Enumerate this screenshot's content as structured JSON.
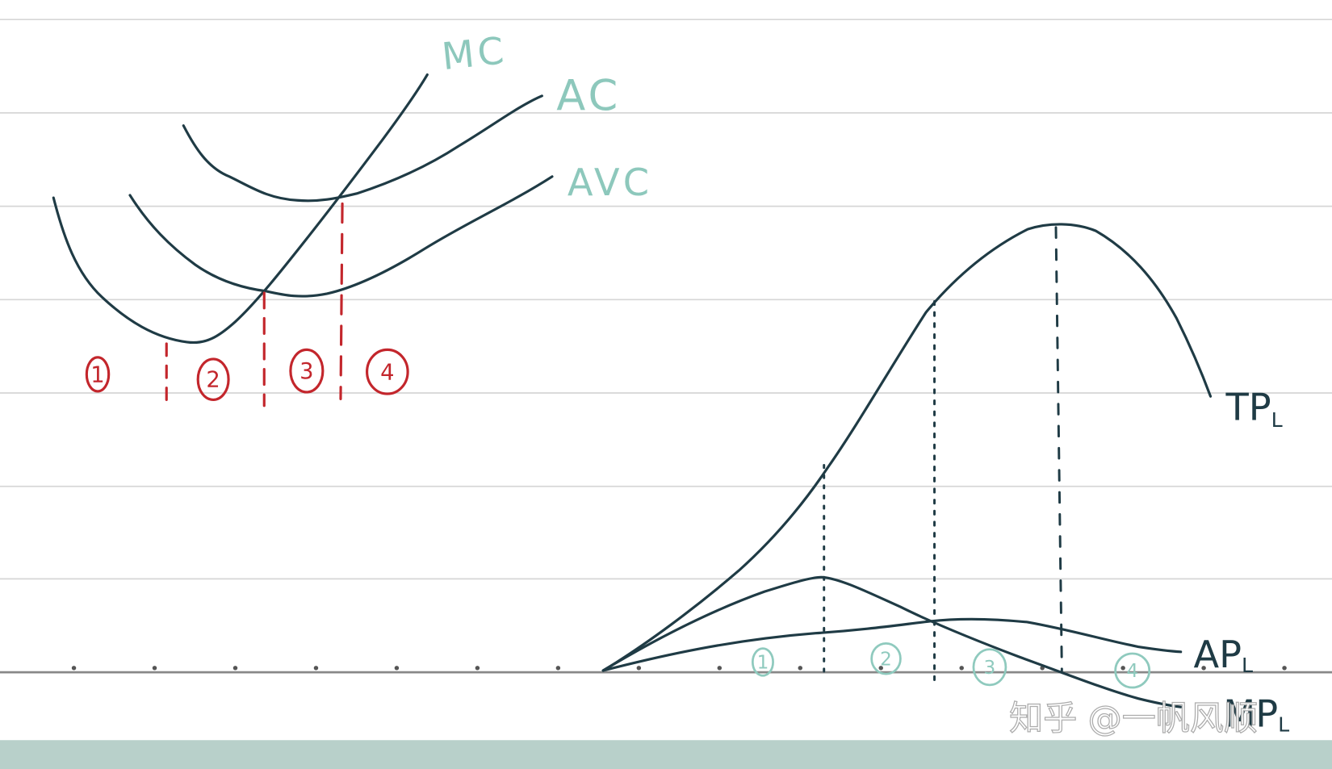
{
  "cost_diagram": {
    "curve_labels": {
      "mc": "MC",
      "ac": "AC",
      "avc": "AVC"
    },
    "region_labels": [
      "1",
      "2",
      "3",
      "4"
    ]
  },
  "production_diagram": {
    "curve_labels": {
      "tp": {
        "main": "TP",
        "sub": "L"
      },
      "ap": {
        "main": "AP",
        "sub": "L"
      },
      "mp": {
        "main": "MP",
        "sub": "L"
      }
    },
    "region_labels": [
      "1",
      "2",
      "3",
      "4"
    ]
  },
  "watermark": "知乎 @一帆风顺",
  "colors": {
    "curve": "#1f3b45",
    "label_teal": "#8dc8bc",
    "region_red": "#c3262c",
    "region_teal": "#8fcabe",
    "rule_line": "#d6d6d6",
    "axis": "#888888",
    "bottom_band": "#b8d0ca"
  }
}
